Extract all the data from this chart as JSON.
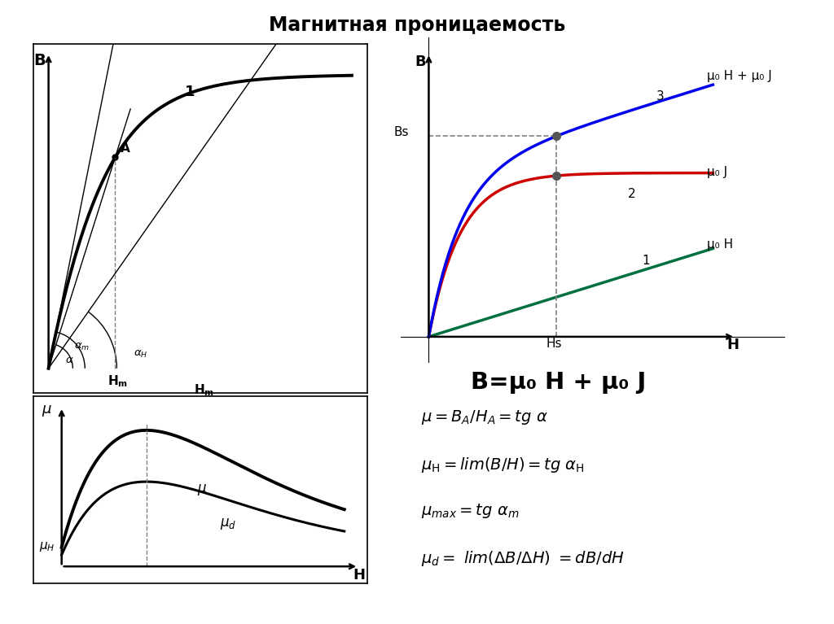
{
  "title": "Магнитная проницаемость",
  "title_fontsize": 17,
  "bg_color": "#ffffff",
  "right_plot": {
    "B_label": "B",
    "Bs_label": "Bs",
    "Hs_label": "Hs",
    "H_label": "H",
    "label1": "1",
    "label2": "2",
    "label3": "3",
    "mu0H_mu0J_label": "μ₀ H + μ₀ J",
    "mu0J_label": "μ₀ J",
    "mu0H_label": "μ₀ H",
    "blue_color": "#0000ee",
    "red_color": "#cc0000",
    "green_color": "#007040"
  },
  "formula": "B=μ₀ H + μ₀ J",
  "formula_fontsize": 21,
  "eq_fontsize": 14
}
